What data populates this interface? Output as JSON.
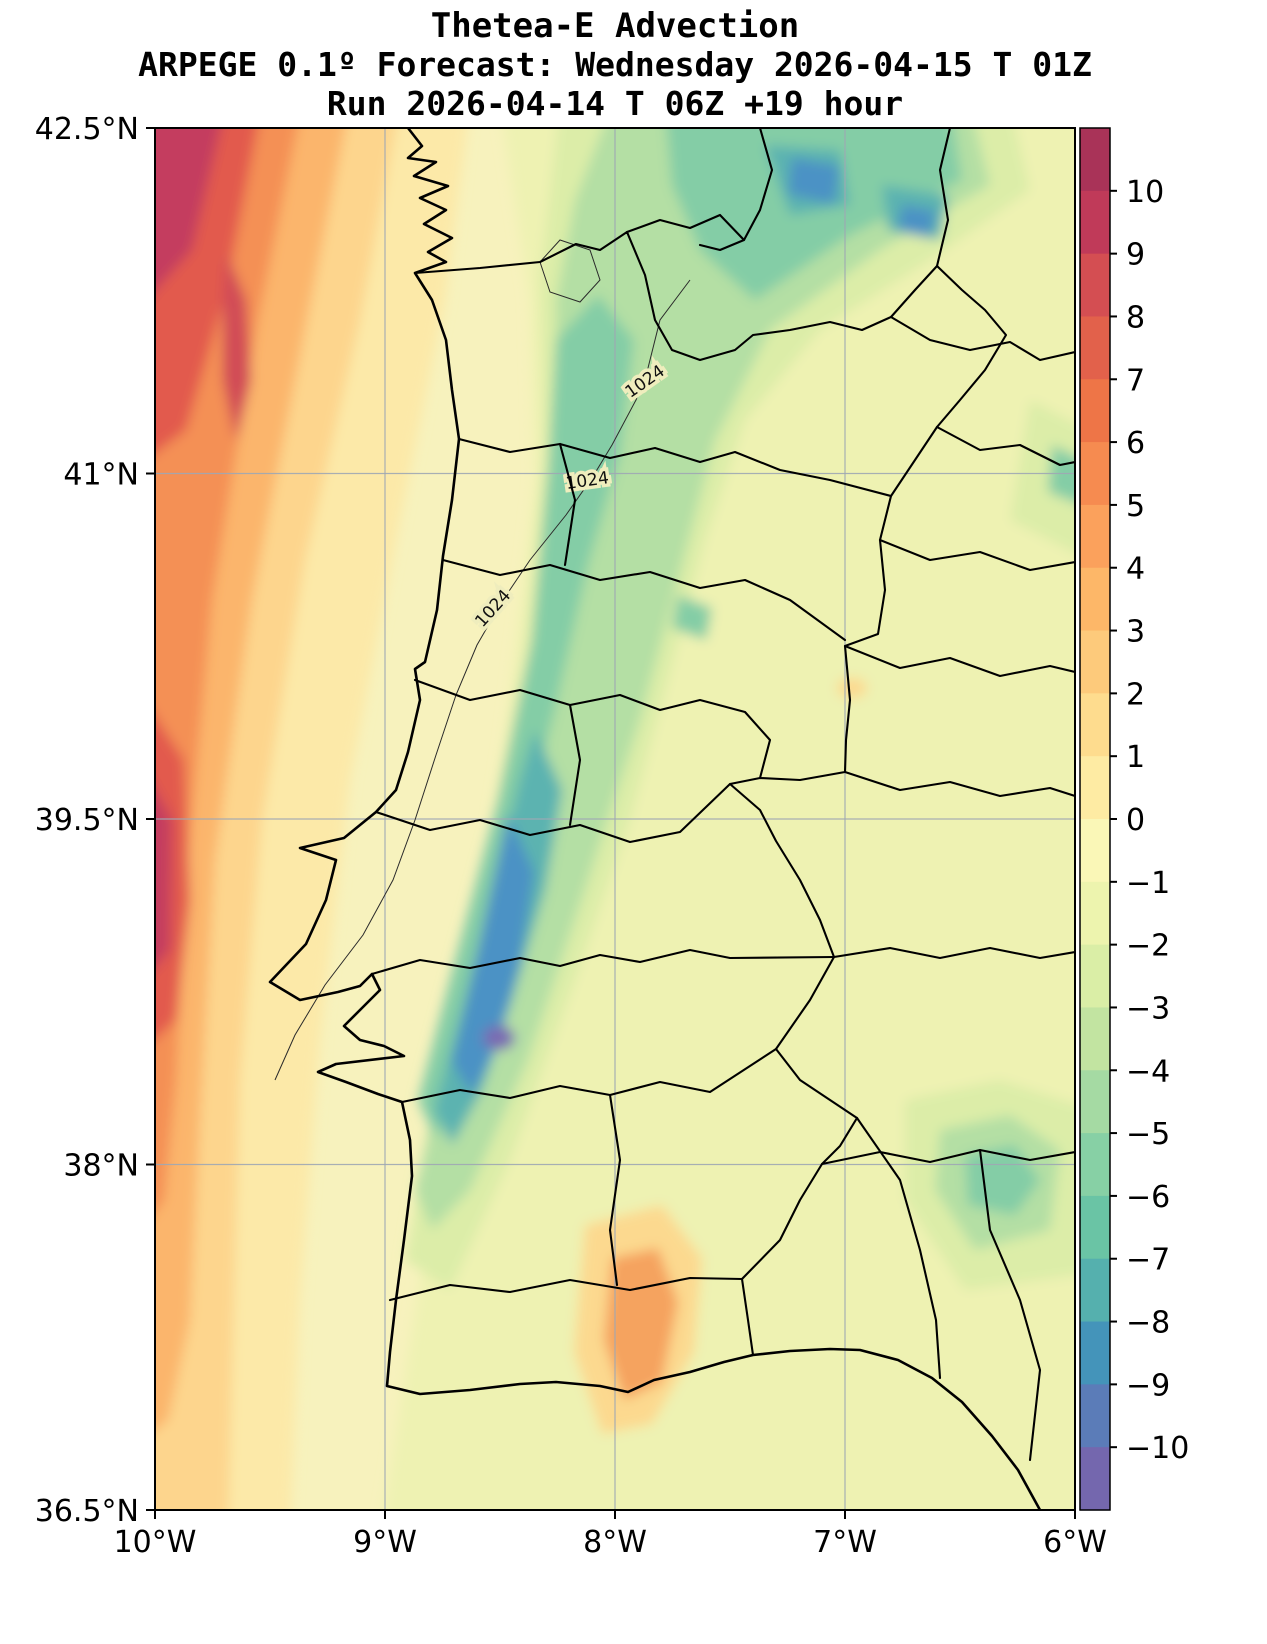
{
  "title": {
    "line1": "Thetea-E Advection",
    "line2": "ARPEGE 0.1º Forecast: Wednesday 2026-04-15 T 01Z",
    "line3": "Run 2026-04-14 T 06Z +19 hour"
  },
  "axes": {
    "y_ticks": [
      {
        "label": "42.5°N",
        "lat": 42.5
      },
      {
        "label": "41°N",
        "lat": 41
      },
      {
        "label": "39.5°N",
        "lat": 39.5
      },
      {
        "label": "38°N",
        "lat": 38
      },
      {
        "label": "36.5°N",
        "lat": 36.5
      }
    ],
    "x_ticks": [
      {
        "label": "10°W",
        "lon": 10
      },
      {
        "label": "9°W",
        "lon": 9
      },
      {
        "label": "8°W",
        "lon": 8
      },
      {
        "label": "7°W",
        "lon": 7
      },
      {
        "label": "6°W",
        "lon": 6
      }
    ],
    "grid": {
      "lats": [
        41,
        39.5,
        38
      ],
      "lons": [
        9,
        8,
        7
      ]
    }
  },
  "colorbar": {
    "max": 11,
    "min": -11,
    "ticks": [
      {
        "value": 10,
        "label": "10"
      },
      {
        "value": 9,
        "label": "9"
      },
      {
        "value": 8,
        "label": "8"
      },
      {
        "value": 7,
        "label": "7"
      },
      {
        "value": 6,
        "label": "6"
      },
      {
        "value": 5,
        "label": "5"
      },
      {
        "value": 4,
        "label": "4"
      },
      {
        "value": 3,
        "label": "3"
      },
      {
        "value": 2,
        "label": "2"
      },
      {
        "value": 1,
        "label": "1"
      },
      {
        "value": 0,
        "label": "0"
      },
      {
        "value": -1,
        "label": "−1"
      },
      {
        "value": -2,
        "label": "−2"
      },
      {
        "value": -3,
        "label": "−3"
      },
      {
        "value": -4,
        "label": "−4"
      },
      {
        "value": -5,
        "label": "−5"
      },
      {
        "value": -6,
        "label": "−6"
      },
      {
        "value": -7,
        "label": "−7"
      },
      {
        "value": -8,
        "label": "−8"
      },
      {
        "value": -9,
        "label": "−9"
      },
      {
        "value": -10,
        "label": "−10"
      }
    ],
    "band_colors_top_to_bottom": [
      "#a93358",
      "#c03a59",
      "#d44e52",
      "#e2614b",
      "#ee7547",
      "#f68b50",
      "#fba15c",
      "#fdb768",
      "#fdca7b",
      "#fedc8e",
      "#feeba3",
      "#faf7b7",
      "#edf4ae",
      "#daeea6",
      "#c2e4a1",
      "#a5daa3",
      "#87d0a5",
      "#6ac4a5",
      "#55b0ae",
      "#4494ba",
      "#5b7cb8",
      "#7467ae"
    ]
  },
  "map": {
    "isobar_label": "1024"
  },
  "chart_data": {
    "type": "heatmap",
    "title": "Thetea-E Advection",
    "subtitle": "ARPEGE 0.1º Forecast: Wednesday 2026-04-15 T 01Z",
    "run_line": "Run 2026-04-14 T 06Z +19 hour",
    "projection": "lat/lon map of Portugal and western Spain with filled advection contours",
    "x_ticks": [
      "10°W",
      "9°W",
      "8°W",
      "7°W",
      "6°W"
    ],
    "y_ticks": [
      "42.5°N",
      "41°N",
      "39.5°N",
      "38°N",
      "36.5°N"
    ],
    "lon_range_deg_west": [
      10,
      6
    ],
    "lat_range_deg_north": [
      36.5,
      42.5
    ],
    "colorbar_levels": [
      10,
      9,
      8,
      7,
      6,
      5,
      4,
      3,
      2,
      1,
      0,
      -1,
      -2,
      -3,
      -4,
      -5,
      -6,
      -7,
      -8,
      -9,
      -10
    ],
    "colormap": "Spectral-like: dark red (+10) through orange and pale yellow (0) to teal, blue and purple (−10)",
    "grid_on": true,
    "legend_position": "right colorbar",
    "isobar_contour_label": "1024",
    "isobar_note": "thin 1024 isobar snakes from NW interior Iberia south-westward offshore of Portugal, labeled three times",
    "grid_estimate": {
      "lons_deg_west": [
        10,
        9.5,
        9,
        8.5,
        8,
        7.5,
        7,
        6.5,
        6
      ],
      "lats_deg_north": [
        42.5,
        41.5,
        40.5,
        39.5,
        38.5,
        37.5,
        36.5
      ],
      "values": [
        [
          10,
          6,
          2,
          -1,
          -3,
          -5,
          -6,
          -4,
          -1
        ],
        [
          8,
          4,
          1,
          -2,
          -5,
          -3,
          -1,
          -1,
          0
        ],
        [
          8,
          3,
          0,
          -3,
          -6,
          -2,
          -1,
          0,
          -1
        ],
        [
          9,
          4,
          0,
          -5,
          -6,
          -1,
          0,
          -1,
          0
        ],
        [
          6,
          2,
          -1,
          -8,
          -4,
          -1,
          0,
          -1,
          -2
        ],
        [
          3,
          1,
          0,
          -1,
          2,
          1,
          0,
          -2,
          -5
        ],
        [
          2,
          1,
          1,
          0,
          1,
          1,
          0,
          -1,
          -1
        ]
      ]
    },
    "features": [
      {
        "region": "far west Atlantic edge (~10°W, NW corner and 39–40°N)",
        "approx_value": "+8 to +10"
      },
      {
        "region": "west Atlantic band between 9°W and 10°W",
        "approx_value": "+2 to +7 (orange)"
      },
      {
        "region": "NE–SW band across central Portugal",
        "approx_value": "−3 to −7 (green/teal)"
      },
      {
        "region": "core near Tagus valley / Lisbon–Setúbal (~8.6°W, 38.3–39°N)",
        "approx_value": "−8 to −10 with small purple −10 spot"
      },
      {
        "region": "north-central patches near top edge (6.5–8°W, 42–42.5°N)",
        "approx_value": "−5 to −8"
      },
      {
        "region": "most of eastern map (Spain)",
        "approx_value": "−2 to +1 (pale yellow-green)"
      },
      {
        "region": "inland Algarve (~8°W, 37–37.5°N)",
        "approx_value": "+2 to +4 (orange patch)"
      },
      {
        "region": "south-east patch (~6.4°W, 37.6–38°N)",
        "approx_value": "−4 to −6 (teal)"
      }
    ]
  }
}
